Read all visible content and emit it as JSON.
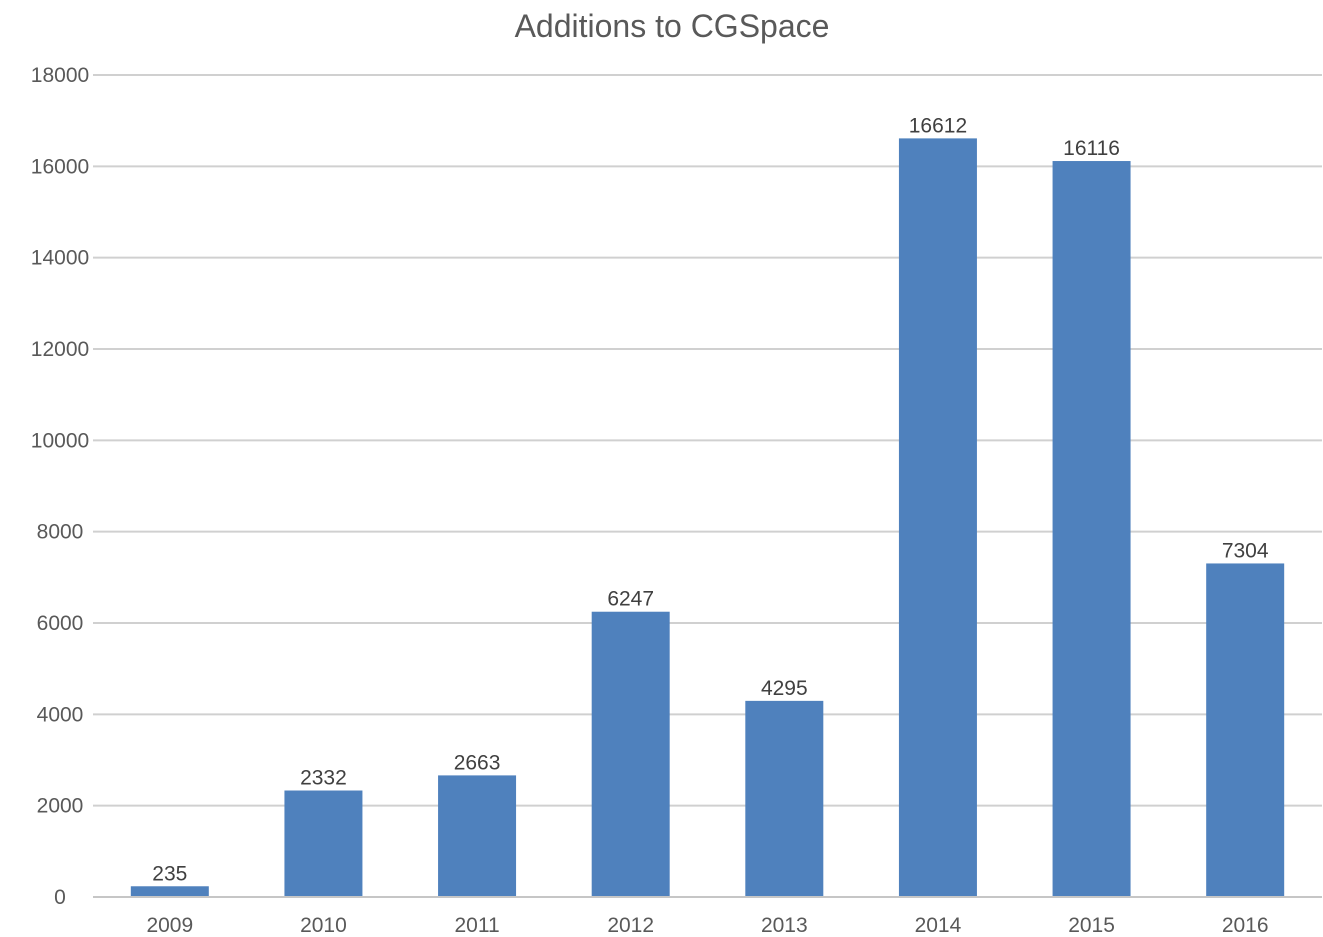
{
  "chart_data": {
    "type": "bar",
    "title": "Additions to CGSpace",
    "xlabel": "",
    "ylabel": "",
    "categories": [
      "2009",
      "2010",
      "2011",
      "2012",
      "2013",
      "2014",
      "2015",
      "2016"
    ],
    "values": [
      235,
      2332,
      2663,
      6247,
      4295,
      16612,
      16116,
      7304
    ],
    "ylim": [
      0,
      18000
    ],
    "yticks": [
      0,
      2000,
      4000,
      6000,
      8000,
      10000,
      12000,
      14000,
      16000,
      18000
    ],
    "grid": true,
    "legend": "none",
    "data_labels": true,
    "bar_color": "#4f81bd"
  }
}
